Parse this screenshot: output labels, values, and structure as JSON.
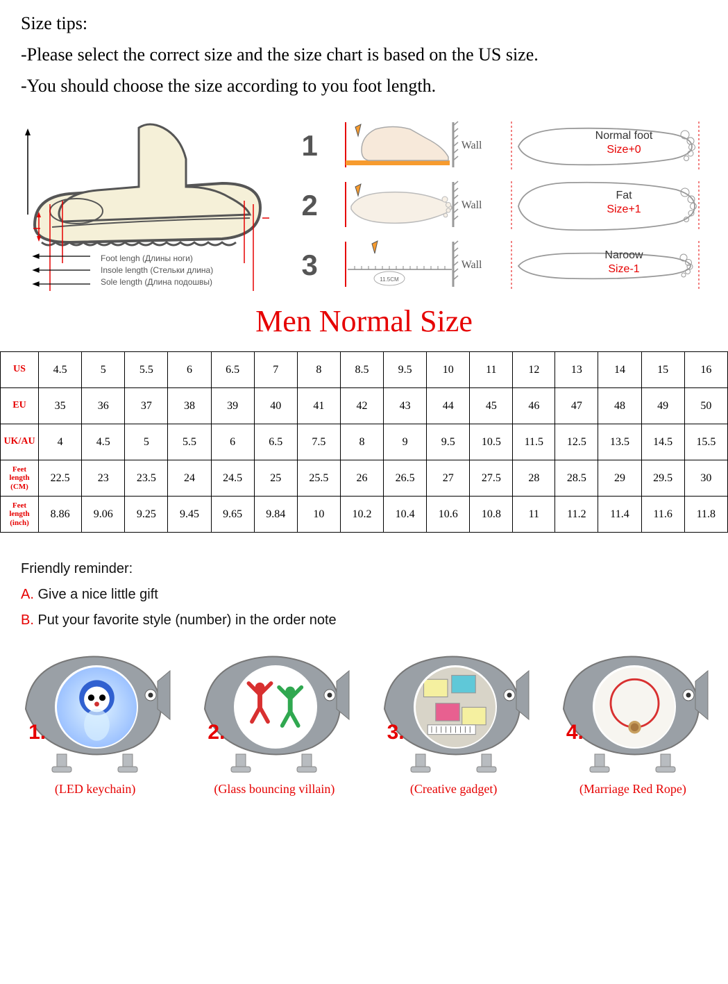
{
  "header": {
    "title": "Size tips:",
    "line1": "-Please select the correct size and the size chart is based on the US size.",
    "line2": "-You should choose the size according to you foot length."
  },
  "shoeLabels": {
    "foot": "Foot lengh (Длины ноги)",
    "insole": "Insole length (Стельки длина)",
    "sole": "Sole length (Длина подошвы)"
  },
  "steps": {
    "n1": "1",
    "n2": "2",
    "n3": "3",
    "wall": "Wall",
    "ruler": "11.5CM"
  },
  "footTypes": [
    {
      "name": "Normal foot",
      "size": "Size+0"
    },
    {
      "name": "Fat",
      "size": "Size+1"
    },
    {
      "name": "Naroow",
      "size": "Size-1"
    }
  ],
  "mainTitle": "Men Normal Size",
  "sizeTable": {
    "headers": [
      "US",
      "EU",
      "UK/AU",
      "Feet length (CM)",
      "Feet length (inch)"
    ],
    "smallIdx": [
      3,
      4
    ],
    "rows": [
      [
        "4.5",
        "5",
        "5.5",
        "6",
        "6.5",
        "7",
        "8",
        "8.5",
        "9.5",
        "10",
        "11",
        "12",
        "13",
        "14",
        "15",
        "16"
      ],
      [
        "35",
        "36",
        "37",
        "38",
        "39",
        "40",
        "41",
        "42",
        "43",
        "44",
        "45",
        "46",
        "47",
        "48",
        "49",
        "50"
      ],
      [
        "4",
        "4.5",
        "5",
        "5.5",
        "6",
        "6.5",
        "7.5",
        "8",
        "9",
        "9.5",
        "10.5",
        "11.5",
        "12.5",
        "13.5",
        "14.5",
        "15.5"
      ],
      [
        "22.5",
        "23",
        "23.5",
        "24",
        "24.5",
        "25",
        "25.5",
        "26",
        "26.5",
        "27",
        "27.5",
        "28",
        "28.5",
        "29",
        "29.5",
        "30"
      ],
      [
        "8.86",
        "9.06",
        "9.25",
        "9.45",
        "9.65",
        "9.84",
        "10",
        "10.2",
        "10.4",
        "10.6",
        "10.8",
        "11",
        "11.2",
        "11.4",
        "11.6",
        "11.8"
      ]
    ]
  },
  "reminder": {
    "title": "Friendly reminder:",
    "a_prefix": "A. ",
    "a_text": "Give a nice little gift",
    "b_prefix": "B. ",
    "b_text": "Put your favorite style (number) in the order note"
  },
  "gifts": [
    {
      "num": "1.",
      "label": "(LED keychain)"
    },
    {
      "num": "2.",
      "label": "(Glass bouncing villain)"
    },
    {
      "num": "3.",
      "label": "(Creative gadget)"
    },
    {
      "num": "4.",
      "label": "(Marriage Red Rope)"
    }
  ],
  "colors": {
    "red": "#e60000",
    "grey": "#888888",
    "darkgrey": "#555555",
    "beige": "#f5f0d8",
    "orange": "#f79b2e"
  }
}
